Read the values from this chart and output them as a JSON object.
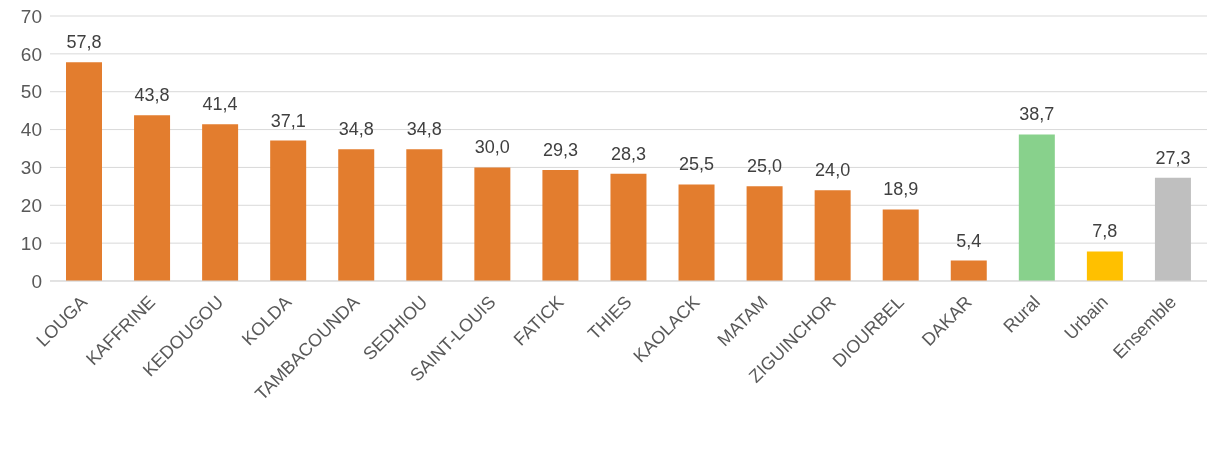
{
  "chart_data": {
    "type": "bar",
    "categories": [
      "LOUGA",
      "KAFFRINE",
      "KEDOUGOU",
      "KOLDA",
      "TAMBACOUNDA",
      "SEDHIOU",
      "SAINT-LOUIS",
      "FATICK",
      "THIES",
      "KAOLACK",
      "MATAM",
      "ZIGUINCHOR",
      "DIOURBEL",
      "DAKAR",
      "Rural",
      "Urbain",
      "Ensemble"
    ],
    "values": [
      57.8,
      43.8,
      41.4,
      37.1,
      34.8,
      34.8,
      30.0,
      29.3,
      28.3,
      25.5,
      25.0,
      24.0,
      18.9,
      5.4,
      38.7,
      7.8,
      27.3
    ],
    "value_labels": [
      "57,8",
      "43,8",
      "41,4",
      "37,1",
      "34,8",
      "34,8",
      "30,0",
      "29,3",
      "28,3",
      "25,5",
      "25,0",
      "24,0",
      "18,9",
      "5,4",
      "38,7",
      "7,8",
      "27,3"
    ],
    "colors": [
      "#e37d2e",
      "#e37d2e",
      "#e37d2e",
      "#e37d2e",
      "#e37d2e",
      "#e37d2e",
      "#e37d2e",
      "#e37d2e",
      "#e37d2e",
      "#e37d2e",
      "#e37d2e",
      "#e37d2e",
      "#e37d2e",
      "#e37d2e",
      "#88d18c",
      "#ffc000",
      "#bfbfbf"
    ],
    "ylim": [
      0,
      70
    ],
    "yticks": [
      0,
      10,
      20,
      30,
      40,
      50,
      60,
      70
    ],
    "grid": "y",
    "legend": false
  }
}
